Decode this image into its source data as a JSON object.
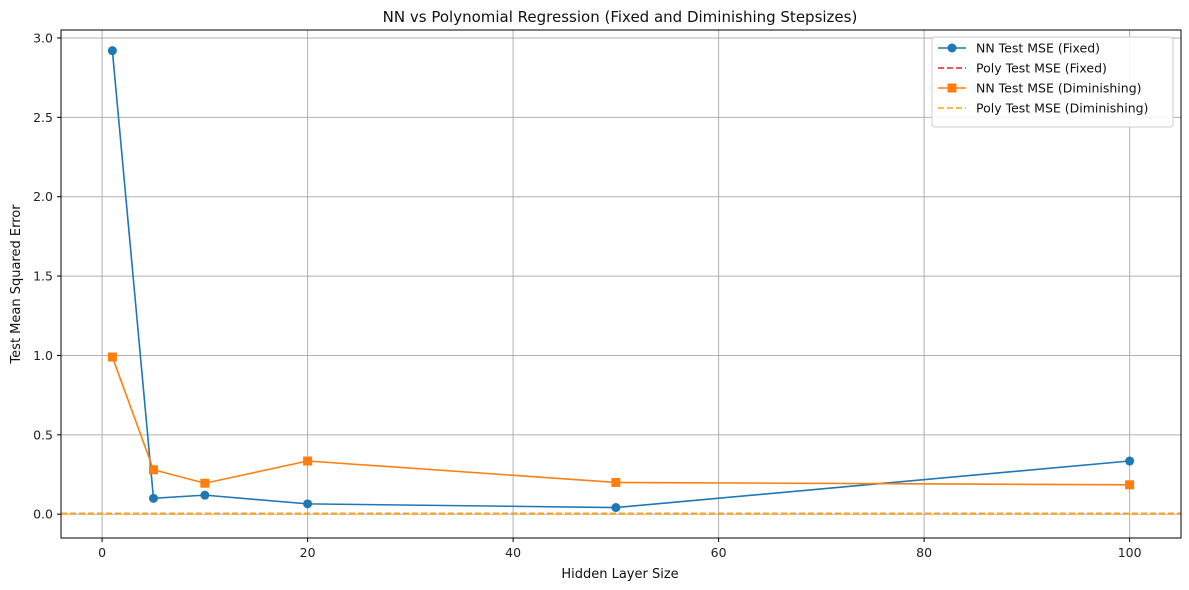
{
  "chart_data": {
    "type": "line",
    "title": "NN vs Polynomial Regression (Fixed and Diminishing Stepsizes)",
    "xlabel": "Hidden Layer Size",
    "ylabel": "Test Mean Squared Error",
    "xlim": [
      -4,
      105
    ],
    "ylim": [
      -0.15,
      3.05
    ],
    "xticks": [
      0,
      20,
      40,
      60,
      80,
      100
    ],
    "yticks": [
      0.0,
      0.5,
      1.0,
      1.5,
      2.0,
      2.5,
      3.0
    ],
    "xtick_labels": [
      "0",
      "20",
      "40",
      "60",
      "80",
      "100"
    ],
    "ytick_labels": [
      "0.0",
      "0.5",
      "1.0",
      "1.5",
      "2.0",
      "2.5",
      "3.0"
    ],
    "grid": true,
    "legend_position": "top-right",
    "x": [
      1,
      5,
      10,
      20,
      50,
      100
    ],
    "series": [
      {
        "name": "NN Test MSE (Fixed)",
        "values": [
          2.92,
          0.1,
          0.12,
          0.065,
          0.042,
          0.335
        ],
        "color": "#1f77b4",
        "marker": "circle",
        "linestyle": "solid"
      },
      {
        "name": "Poly Test MSE (Fixed)",
        "hline": 0.004,
        "color": "#d62728",
        "linestyle": "dashed"
      },
      {
        "name": "NN Test MSE (Diminishing)",
        "values": [
          0.99,
          0.28,
          0.195,
          0.335,
          0.2,
          0.185
        ],
        "color": "#ff7f0e",
        "marker": "square",
        "linestyle": "solid"
      },
      {
        "name": "Poly Test MSE (Diminishing)",
        "hline": 0.004,
        "color": "#ffa500",
        "linestyle": "dashed"
      }
    ]
  }
}
